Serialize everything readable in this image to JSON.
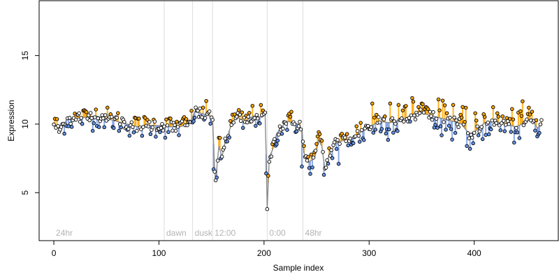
{
  "chart_data": {
    "type": "scatter",
    "title": "",
    "xlabel": "Sample index",
    "ylabel": "Expression",
    "xlim": [
      -14,
      480
    ],
    "ylim": [
      1.5,
      19
    ],
    "xticks": [
      0,
      100,
      200,
      300,
      400
    ],
    "yticks": [
      5,
      10,
      15
    ],
    "grid": false,
    "colors": {
      "point_fill_high": "#ffa500",
      "point_fill_low": "#6495ed",
      "trend_line": "#8a8a8a",
      "segment_high": "#ffa500",
      "segment_low": "#7a9ee6",
      "section_line": "#dddddd",
      "section_text": "#b3b3b3"
    },
    "section_markers": [
      {
        "x": 0,
        "label": "24hr"
      },
      {
        "x": 105,
        "label": "dawn"
      },
      {
        "x": 132,
        "label": "dusk"
      },
      {
        "x": 151,
        "label": "12:00"
      },
      {
        "x": 203,
        "label": "0:00"
      },
      {
        "x": 237,
        "label": "48hr"
      }
    ],
    "anchors": [
      [
        0,
        10.1
      ],
      [
        5,
        9.6
      ],
      [
        9,
        9.9
      ],
      [
        12,
        10.3
      ],
      [
        20,
        10.4
      ],
      [
        30,
        10.5
      ],
      [
        40,
        10.6
      ],
      [
        50,
        10.4
      ],
      [
        60,
        10.2
      ],
      [
        70,
        10.0
      ],
      [
        80,
        9.8
      ],
      [
        90,
        9.9
      ],
      [
        100,
        9.9
      ],
      [
        110,
        9.8
      ],
      [
        120,
        9.8
      ],
      [
        130,
        10.1
      ],
      [
        134,
        10.9
      ],
      [
        140,
        10.8
      ],
      [
        148,
        10.6
      ],
      [
        151,
        10.5
      ],
      [
        153,
        6.6
      ],
      [
        154,
        5.9
      ],
      [
        157,
        8.4
      ],
      [
        160,
        7.6
      ],
      [
        163,
        8.7
      ],
      [
        166,
        9.3
      ],
      [
        170,
        10.2
      ],
      [
        175,
        10.5
      ],
      [
        180,
        10.1
      ],
      [
        190,
        10.6
      ],
      [
        198,
        10.5
      ],
      [
        201,
        10.7
      ],
      [
        202,
        7.8
      ],
      [
        203,
        3.8
      ],
      [
        205,
        7.6
      ],
      [
        208,
        8.1
      ],
      [
        212,
        9.3
      ],
      [
        218,
        9.9
      ],
      [
        222,
        10.2
      ],
      [
        228,
        10.1
      ],
      [
        233,
        10.0
      ],
      [
        236,
        9.6
      ],
      [
        238,
        7.9
      ],
      [
        242,
        7.2
      ],
      [
        248,
        7.5
      ],
      [
        252,
        8.8
      ],
      [
        255,
        8.4
      ],
      [
        258,
        6.6
      ],
      [
        262,
        7.8
      ],
      [
        268,
        8.6
      ],
      [
        275,
        8.8
      ],
      [
        282,
        8.9
      ],
      [
        290,
        9.3
      ],
      [
        300,
        9.8
      ],
      [
        310,
        10.2
      ],
      [
        320,
        10.1
      ],
      [
        330,
        10.3
      ],
      [
        340,
        10.6
      ],
      [
        350,
        10.8
      ],
      [
        360,
        10.6
      ],
      [
        370,
        10.4
      ],
      [
        380,
        10.2
      ],
      [
        388,
        10.0
      ],
      [
        395,
        9.3
      ],
      [
        400,
        9.4
      ],
      [
        410,
        10.1
      ],
      [
        420,
        10.2
      ],
      [
        430,
        10.0
      ],
      [
        440,
        9.8
      ],
      [
        450,
        10.2
      ],
      [
        455,
        10.4
      ],
      [
        460,
        9.7
      ],
      [
        464,
        10.0
      ]
    ],
    "n_points": 465,
    "noise_sd": 0.45,
    "outliers": [
      {
        "x": 6,
        "y": 9.6
      },
      {
        "x": 10,
        "y": 9.3
      },
      {
        "x": 136,
        "y": 11.0
      },
      {
        "x": 152,
        "y": 6.7
      },
      {
        "x": 154,
        "y": 5.9
      },
      {
        "x": 155,
        "y": 6.1
      },
      {
        "x": 159,
        "y": 7.5
      },
      {
        "x": 175,
        "y": 10.8
      },
      {
        "x": 203,
        "y": 3.8
      },
      {
        "x": 202,
        "y": 6.4
      },
      {
        "x": 206,
        "y": 7.6
      },
      {
        "x": 236,
        "y": 6.9
      },
      {
        "x": 243,
        "y": 6.8
      },
      {
        "x": 251,
        "y": 9.1
      },
      {
        "x": 257,
        "y": 6.3
      },
      {
        "x": 271,
        "y": 7.1
      },
      {
        "x": 303,
        "y": 11.5
      },
      {
        "x": 320,
        "y": 11.5
      },
      {
        "x": 328,
        "y": 11.4
      },
      {
        "x": 341,
        "y": 11.9
      },
      {
        "x": 350,
        "y": 11.5
      },
      {
        "x": 355,
        "y": 11.2
      },
      {
        "x": 366,
        "y": 11.8
      },
      {
        "x": 380,
        "y": 11.4
      },
      {
        "x": 393,
        "y": 8.4
      },
      {
        "x": 396,
        "y": 8.2
      },
      {
        "x": 399,
        "y": 8.6
      },
      {
        "x": 452,
        "y": 11.2
      },
      {
        "x": 460,
        "y": 9.1
      }
    ]
  }
}
